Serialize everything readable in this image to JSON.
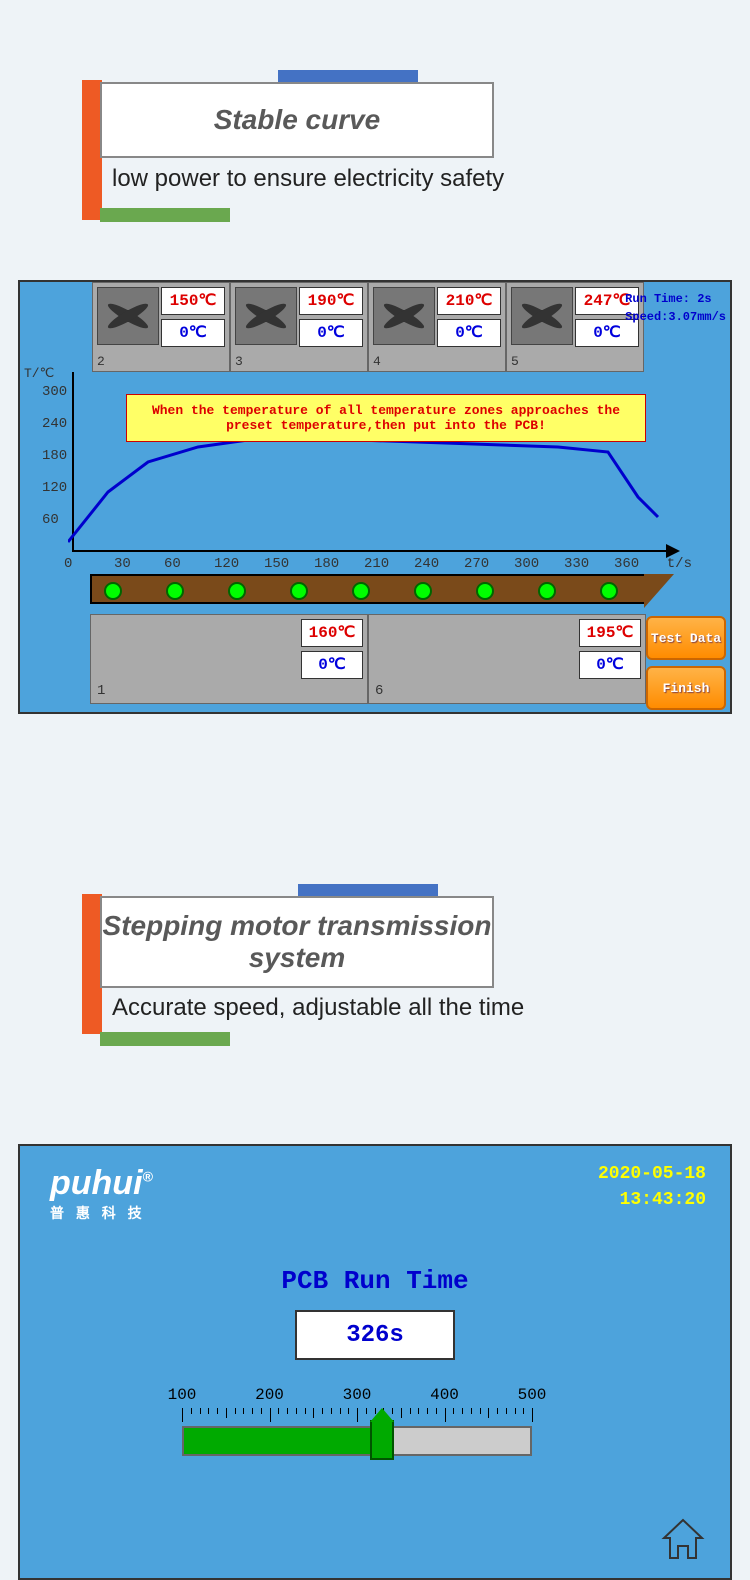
{
  "section1": {
    "title": "Stable curve",
    "subtitle": "low power to ensure electricity safety"
  },
  "panel1": {
    "zones_top": [
      {
        "num": "2",
        "set": "150℃",
        "cur": "0℃"
      },
      {
        "num": "3",
        "set": "190℃",
        "cur": "0℃"
      },
      {
        "num": "4",
        "set": "210℃",
        "cur": "0℃"
      },
      {
        "num": "5",
        "set": "247℃",
        "cur": "0℃"
      }
    ],
    "run_time_label": "Run Time:",
    "run_time_value": "2s",
    "speed_label": "Speed:",
    "speed_value": "3.07mm/s",
    "y_axis_label": "T/℃",
    "y_ticks": [
      "300",
      "240",
      "180",
      "120",
      "60"
    ],
    "x_axis_label": "t/s",
    "x_ticks": [
      "0",
      "30",
      "60",
      "120",
      "150",
      "180",
      "210",
      "240",
      "270",
      "300",
      "330",
      "360"
    ],
    "warning": "When the temperature of all temperature zones approaches the preset temperature,then put into the PCB!",
    "curve": {
      "color": "#0000cd",
      "points": [
        [
          0,
          170
        ],
        [
          40,
          120
        ],
        [
          80,
          90
        ],
        [
          130,
          75
        ],
        [
          180,
          68
        ],
        [
          230,
          68
        ],
        [
          290,
          68
        ],
        [
          490,
          75
        ],
        [
          540,
          80
        ],
        [
          570,
          125
        ],
        [
          590,
          145
        ]
      ]
    },
    "conveyor_dots": 9,
    "zones_bottom": [
      {
        "num": "1",
        "set": "160℃",
        "cur": "0℃"
      },
      {
        "num": "6",
        "set": "195℃",
        "cur": "0℃"
      }
    ],
    "btn_test": "Test Data",
    "btn_finish": "Finish"
  },
  "section2": {
    "title": "Stepping motor transmission system",
    "subtitle": "Accurate speed, adjustable all the time"
  },
  "panel2": {
    "brand": "puhui",
    "brand_sub": "普 惠 科 技",
    "date": "2020-05-18",
    "time": "13:43:20",
    "pcb_title": "PCB Run Time",
    "pcb_value": "326s",
    "slider": {
      "min": 100,
      "max": 500,
      "value": 326,
      "ticks": [
        100,
        200,
        300,
        400,
        500
      ]
    }
  },
  "colors": {
    "panel_bg": "#4da3dc",
    "accent_blue": "#4472c4",
    "accent_orange": "#ee5a24",
    "accent_green": "#6aa84f",
    "warn_bg": "#ffff66",
    "warn_text": "#d00000"
  }
}
